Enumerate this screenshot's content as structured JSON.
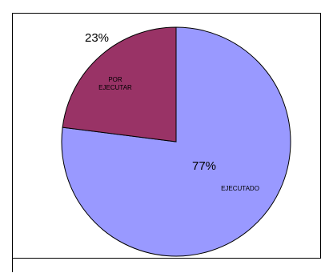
{
  "chart_data": {
    "type": "pie",
    "title": "",
    "slices": [
      {
        "label": "EJECUTADO",
        "value": 77,
        "percent_label": "77%",
        "color": "#9999ff"
      },
      {
        "label": "POR EJECUTAR",
        "value": 23,
        "percent_label": "23%",
        "color": "#993366"
      }
    ],
    "start": "12 o'clock",
    "direction": "clockwise",
    "border_color": "#000000"
  }
}
